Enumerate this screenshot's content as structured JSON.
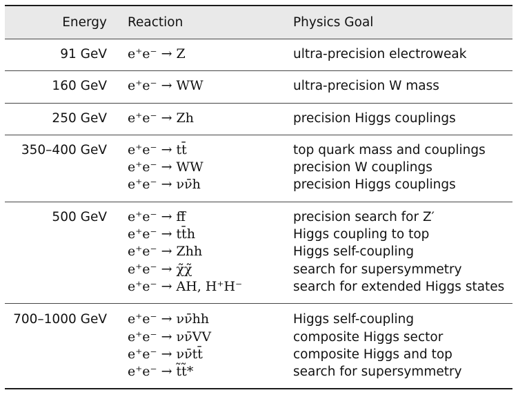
{
  "columns": {
    "energy": "Energy",
    "reaction": "Reaction",
    "goal": "Physics Goal"
  },
  "groups": [
    {
      "energy": "91 GeV",
      "rows": [
        {
          "reaction": "e⁺e⁻ → Z",
          "goal": "ultra-precision electroweak"
        }
      ]
    },
    {
      "energy": "160 GeV",
      "rows": [
        {
          "reaction": "e⁺e⁻ → WW",
          "goal": "ultra-precision W mass"
        }
      ]
    },
    {
      "energy": "250 GeV",
      "rows": [
        {
          "reaction": "e⁺e⁻ → Zh",
          "goal": "precision Higgs couplings"
        }
      ]
    },
    {
      "energy": "350–400 GeV",
      "rows": [
        {
          "reaction": "e⁺e⁻ → tt̄",
          "goal": "top quark mass and couplings"
        },
        {
          "reaction": "e⁺e⁻ → WW",
          "goal": "precision W couplings"
        },
        {
          "reaction": "e⁺e⁻ → νν̄h",
          "goal": "precision Higgs couplings"
        }
      ]
    },
    {
      "energy": "500 GeV",
      "rows": [
        {
          "reaction": "e⁺e⁻ → ff̄",
          "goal": "precision search for Z′"
        },
        {
          "reaction": "e⁺e⁻ → tt̄h",
          "goal": "Higgs coupling to top"
        },
        {
          "reaction": "e⁺e⁻ → Zhh",
          "goal": "Higgs self-coupling"
        },
        {
          "reaction": "e⁺e⁻ → χ̃χ̃",
          "goal": "search for supersymmetry"
        },
        {
          "reaction": "e⁺e⁻ → AH, H⁺H⁻",
          "goal": "search for extended Higgs states"
        }
      ]
    },
    {
      "energy": "700–1000 GeV",
      "rows": [
        {
          "reaction": "e⁺e⁻ → νν̄hh",
          "goal": "Higgs self-coupling"
        },
        {
          "reaction": "e⁺e⁻ → νν̄VV",
          "goal": "composite Higgs sector"
        },
        {
          "reaction": "e⁺e⁻ → νν̄tt̄",
          "goal": "composite Higgs and top"
        },
        {
          "reaction": "e⁺e⁻ → t̃t̃*",
          "goal": "search for supersymmetry"
        }
      ]
    }
  ]
}
